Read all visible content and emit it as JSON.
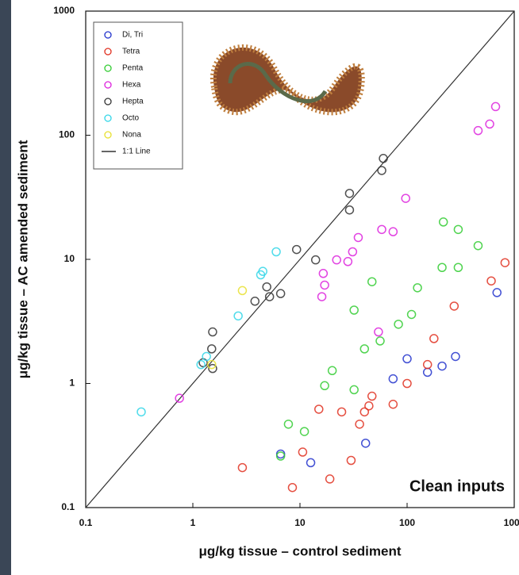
{
  "chart_data": {
    "type": "scatter",
    "xlabel": "μg/kg tissue – control sediment",
    "ylabel": "μg/kg tissue – AC amended sediment",
    "annotation": "Clean inputs",
    "xscale": "log",
    "yscale": "log",
    "xlim": [
      0.1,
      1000
    ],
    "ylim": [
      0.1,
      1000
    ],
    "xticks": [
      0.1,
      1,
      10,
      100,
      1000
    ],
    "yticks": [
      0.1,
      1,
      10,
      100,
      1000
    ],
    "legend": "upper left",
    "series": [
      {
        "name": "Di, Tri",
        "color": "#2233cc",
        "x": [
          690,
          283,
          212,
          155,
          100,
          74,
          41,
          12.6,
          6.6
        ],
        "values": [
          5.4,
          1.65,
          1.38,
          1.23,
          1.58,
          1.09,
          0.33,
          0.23,
          0.27
        ]
      },
      {
        "name": "Tetra",
        "color": "#e03020",
        "x": [
          820,
          610,
          275,
          178,
          155,
          100,
          74,
          47,
          44,
          40,
          36,
          24.5,
          15,
          10.6,
          30,
          19,
          8.5,
          2.9
        ],
        "values": [
          9.4,
          6.7,
          4.2,
          2.3,
          1.42,
          1.0,
          0.68,
          0.79,
          0.66,
          0.59,
          0.47,
          0.59,
          0.62,
          0.28,
          0.24,
          0.17,
          0.145,
          0.21
        ]
      },
      {
        "name": "Penta",
        "color": "#33cc33",
        "x": [
          218,
          300,
          460,
          212,
          300,
          125,
          47,
          32,
          110,
          83,
          56,
          40,
          20,
          17,
          32,
          11,
          7.8,
          6.6
        ],
        "values": [
          20,
          17.4,
          12.9,
          8.6,
          8.6,
          5.9,
          6.6,
          3.9,
          3.6,
          3.0,
          2.2,
          1.9,
          1.27,
          0.96,
          0.89,
          0.41,
          0.47,
          0.26
        ]
      },
      {
        "name": "Hexa",
        "color": "#dd22dd",
        "x": [
          670,
          590,
          460,
          97,
          58,
          74,
          35,
          31,
          28,
          22,
          17,
          16,
          16.5,
          54,
          0.75
        ],
        "values": [
          170,
          123,
          109,
          31,
          17.4,
          16.7,
          15,
          11.5,
          9.6,
          9.9,
          6.2,
          5,
          7.7,
          2.6,
          0.76
        ]
      },
      {
        "name": "Hepta",
        "color": "#333333",
        "x": [
          58,
          60,
          29,
          29,
          9.3,
          14,
          4.9,
          6.6,
          5.2,
          3.8,
          1.53,
          1.5,
          1.25,
          1.53
        ],
        "values": [
          52,
          65,
          34,
          25,
          12,
          9.9,
          6,
          5.3,
          5,
          4.6,
          2.6,
          1.9,
          1.47,
          1.32
        ]
      },
      {
        "name": "Octo",
        "color": "#33d6e8",
        "x": [
          6,
          4.5,
          4.3,
          2.65,
          1.34,
          1.19,
          0.33
        ],
        "values": [
          11.5,
          8,
          7.5,
          3.5,
          1.65,
          1.42,
          0.59
        ]
      },
      {
        "name": "Nona",
        "color": "#e8e030",
        "x": [
          2.9,
          1.5
        ],
        "values": [
          5.6,
          1.42
        ]
      }
    ],
    "reference_line": {
      "name": "1:1 Line",
      "color": "#333333"
    }
  }
}
